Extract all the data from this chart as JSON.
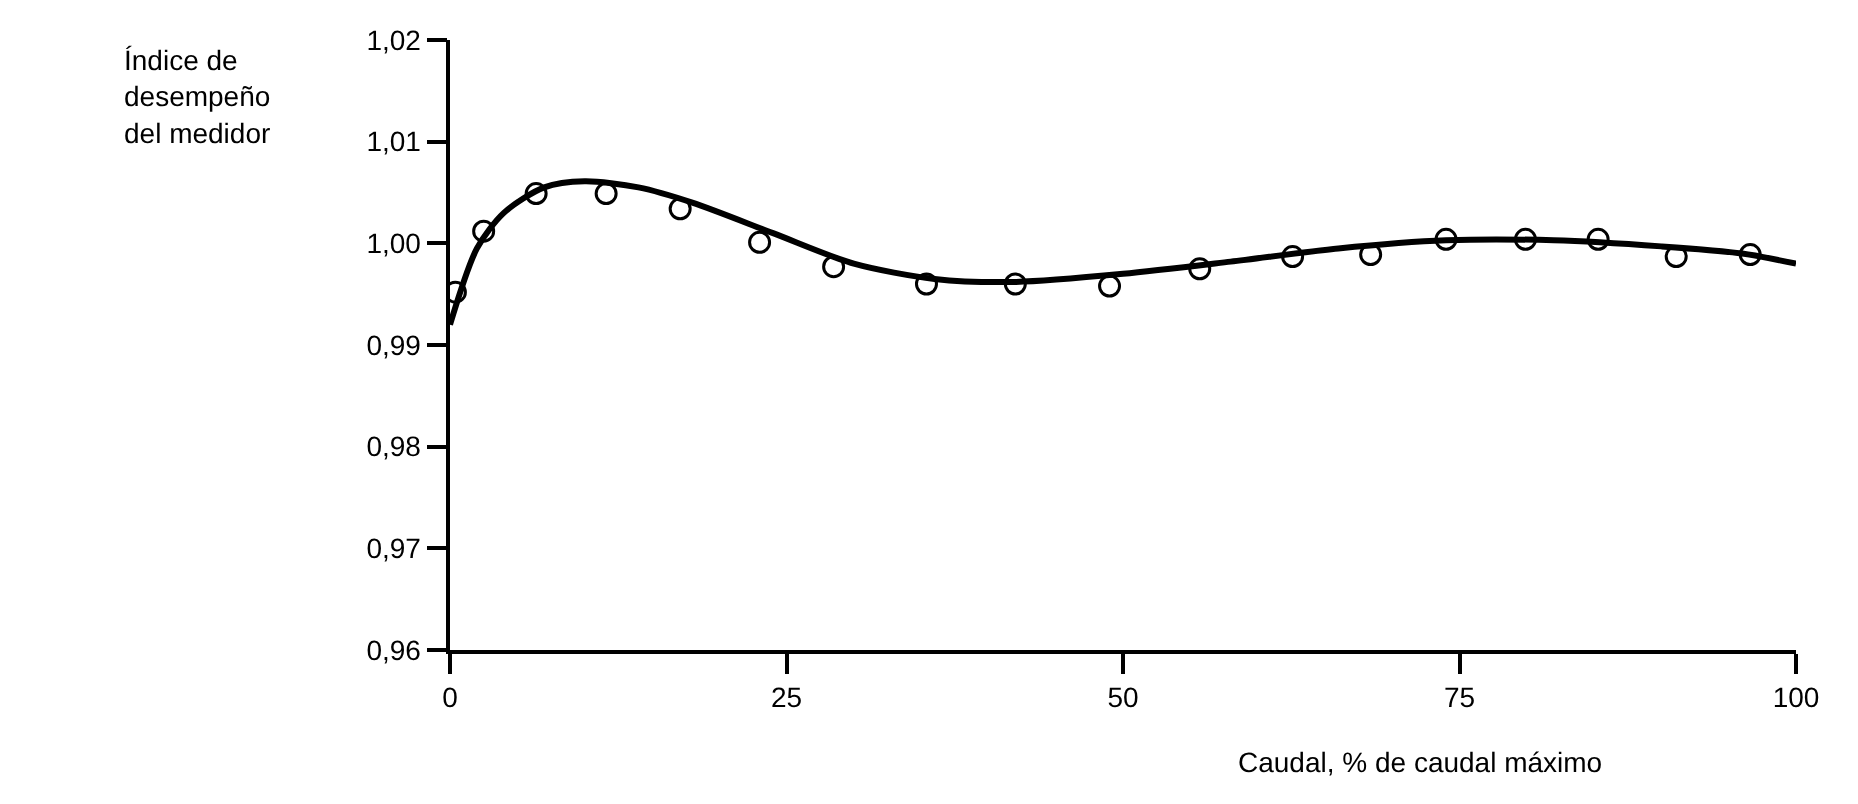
{
  "chart_data": {
    "type": "scatter",
    "xlabel": "Caudal, % de caudal máximo",
    "ylabel": "Índice de\ndesempeño\ndel medidor",
    "xlim": [
      0,
      100
    ],
    "xticks": [
      0,
      25,
      50,
      75,
      100
    ],
    "ylim": [
      0.96,
      1.02
    ],
    "yticks": [
      {
        "value": 0.96,
        "label": "0,96"
      },
      {
        "value": 0.97,
        "label": "0,97"
      },
      {
        "value": 0.98,
        "label": "0,98"
      },
      {
        "value": 0.99,
        "label": "0,99"
      },
      {
        "value": 1.0,
        "label": "1,00"
      },
      {
        "value": 1.01,
        "label": "1,01"
      },
      {
        "value": 1.02,
        "label": "1,02"
      }
    ],
    "series": [
      {
        "marker": "circle",
        "color": "#000000",
        "x": [
          0.4,
          2.5,
          6.4,
          11.6,
          17.1,
          23,
          28.5,
          35.4,
          42,
          49,
          55.7,
          62.6,
          68.4,
          74,
          79.9,
          85.3,
          91.1,
          96.6
        ],
        "values": [
          0.9952,
          1.0012,
          1.0049,
          1.0049,
          1.0034,
          1.0001,
          0.9977,
          0.996,
          0.996,
          0.9958,
          0.9975,
          0.9987,
          0.9989,
          1.0004,
          1.0004,
          1.0004,
          0.9987,
          0.9989
        ]
      },
      {
        "type": "line",
        "marker": "none",
        "line_style": "solid",
        "color": "#000000",
        "x": [
          0,
          2,
          4,
          7,
          10,
          14,
          18,
          24,
          30,
          36,
          42,
          50,
          58,
          66,
          74,
          82,
          90,
          96,
          100
        ],
        "values": [
          0.992,
          0.9995,
          1.003,
          1.0055,
          1.0061,
          1.0055,
          1.004,
          1.001,
          0.998,
          0.9965,
          0.9962,
          0.997,
          0.9982,
          0.9995,
          1.0003,
          1.0003,
          0.9997,
          0.999,
          0.998
        ]
      }
    ]
  }
}
